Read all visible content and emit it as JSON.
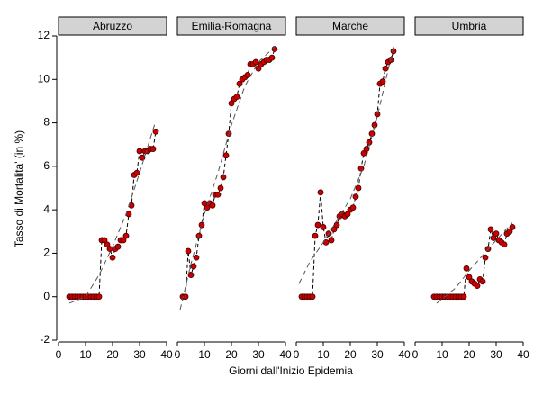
{
  "chart_data": [
    {
      "type": "scatter",
      "title": "Abruzzo",
      "ylabel": "Tasso di Mortalita' (in %)",
      "xlabel": "Giorni dall'Inizio Epidemia",
      "xlim": [
        0,
        40
      ],
      "xticks": [
        0,
        10,
        20,
        30,
        40
      ],
      "ylim": [
        -2,
        12
      ],
      "yticks": [
        -2,
        0,
        2,
        4,
        6,
        8,
        10,
        12
      ],
      "series": [
        {
          "color": "#cc0000",
          "x": [
            4,
            5,
            6,
            7,
            8,
            9,
            10,
            11,
            12,
            13,
            14,
            15,
            16,
            17,
            18,
            19,
            20,
            21,
            22,
            23,
            24,
            25,
            26,
            27,
            28,
            29,
            30,
            31,
            32,
            33,
            34,
            35,
            36
          ],
          "values": [
            0,
            0,
            0,
            0,
            0,
            0,
            0,
            0,
            0,
            0,
            0,
            0,
            2.6,
            2.6,
            2.4,
            2.2,
            1.8,
            2.2,
            2.3,
            2.6,
            2.6,
            2.8,
            3.8,
            4.2,
            5.6,
            5.7,
            6.7,
            6.4,
            6.7,
            6.7,
            6.8,
            6.8,
            7.6
          ]
        },
        {
          "color": "#555555",
          "dashed": true,
          "x": [
            4,
            10,
            15,
            20,
            25,
            30,
            36
          ],
          "values": [
            -0.3,
            0,
            1,
            2.3,
            3.8,
            5.7,
            8.1
          ]
        }
      ]
    },
    {
      "type": "scatter",
      "title": "Emilia-Romagna",
      "xlim": [
        0,
        40
      ],
      "xticks": [
        0,
        10,
        20,
        30,
        40
      ],
      "ylim": [
        -2,
        12
      ],
      "series": [
        {
          "color": "#cc0000",
          "x": [
            2,
            3,
            4,
            5,
            6,
            7,
            8,
            9,
            10,
            11,
            12,
            13,
            14,
            15,
            16,
            17,
            18,
            19,
            20,
            21,
            22,
            23,
            24,
            25,
            26,
            27,
            28,
            29,
            30,
            31,
            32,
            33,
            34,
            35,
            36
          ],
          "values": [
            0,
            0,
            2.1,
            1.0,
            1.4,
            1.8,
            2.8,
            3.3,
            4.3,
            4.1,
            4.3,
            4.2,
            4.7,
            4.7,
            5.0,
            5.5,
            6.5,
            7.5,
            8.9,
            9.1,
            9.2,
            9.8,
            10.0,
            10.1,
            10.2,
            10.7,
            10.7,
            10.8,
            10.5,
            10.7,
            10.8,
            10.9,
            10.9,
            11.0,
            11.4
          ]
        },
        {
          "color": "#555555",
          "dashed": true,
          "x": [
            1,
            5,
            10,
            15,
            20,
            25,
            30,
            36
          ],
          "values": [
            -0.6,
            1.5,
            3.8,
            5.7,
            7.9,
            9.7,
            10.8,
            11.5
          ]
        }
      ]
    },
    {
      "type": "scatter",
      "title": "Marche",
      "xlim": [
        0,
        40
      ],
      "xticks": [
        0,
        10,
        20,
        30,
        40
      ],
      "ylim": [
        -2,
        12
      ],
      "series": [
        {
          "color": "#cc0000",
          "x": [
            2,
            3,
            4,
            5,
            6,
            7,
            8,
            9,
            10,
            11,
            12,
            13,
            14,
            15,
            16,
            17,
            18,
            19,
            20,
            21,
            22,
            23,
            24,
            25,
            26,
            27,
            28,
            29,
            30,
            31,
            32,
            33,
            34,
            35,
            36
          ],
          "values": [
            0,
            0,
            0,
            0,
            0,
            2.8,
            3.3,
            4.8,
            3.2,
            2.5,
            2.9,
            2.6,
            3.1,
            3.3,
            3.7,
            3.8,
            3.7,
            3.8,
            4.0,
            4.1,
            4.6,
            5.0,
            5.9,
            6.6,
            6.8,
            7.1,
            7.5,
            7.9,
            8.4,
            9.8,
            9.9,
            10.5,
            10.8,
            10.9,
            11.3
          ]
        },
        {
          "color": "#555555",
          "dashed": true,
          "x": [
            1,
            5,
            10,
            15,
            20,
            25,
            30,
            36
          ],
          "values": [
            0.6,
            1.6,
            2.5,
            3.5,
            4.5,
            6.0,
            8.3,
            11.5
          ]
        }
      ]
    },
    {
      "type": "scatter",
      "title": "Umbria",
      "xlim": [
        0,
        40
      ],
      "xticks": [
        0,
        10,
        20,
        30,
        40
      ],
      "ylim": [
        -2,
        12
      ],
      "series": [
        {
          "color": "#cc0000",
          "x": [
            7,
            8,
            9,
            10,
            11,
            12,
            13,
            14,
            15,
            16,
            17,
            18,
            19,
            20,
            21,
            22,
            23,
            24,
            25,
            26,
            27,
            28,
            29,
            30,
            31,
            32,
            33,
            34,
            35,
            36
          ],
          "values": [
            0,
            0,
            0,
            0,
            0,
            0,
            0,
            0,
            0,
            0,
            0,
            0,
            1.3,
            0.9,
            0.7,
            0.6,
            0.5,
            0.8,
            0.7,
            1.8,
            2.2,
            3.1,
            2.7,
            2.9,
            2.6,
            2.5,
            2.4,
            2.9,
            3.0,
            3.2
          ]
        },
        {
          "color": "#555555",
          "dashed": true,
          "x": [
            8,
            15,
            20,
            25,
            30,
            36
          ],
          "values": [
            -0.3,
            0.4,
            1.2,
            1.9,
            2.6,
            3.4
          ]
        }
      ]
    }
  ]
}
